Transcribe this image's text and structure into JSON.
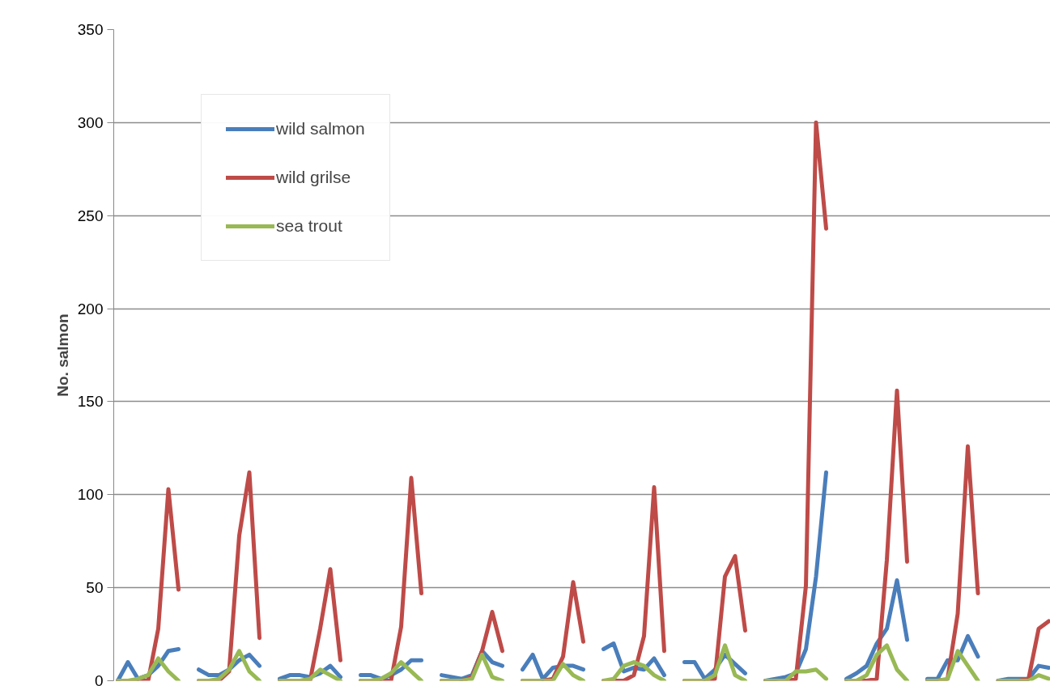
{
  "chart_data": {
    "type": "line",
    "ylabel": "No. salmon",
    "categories": [
      null,
      null,
      null,
      null,
      null,
      null,
      null,
      null,
      null,
      null,
      null,
      null,
      null,
      null,
      null,
      null,
      null,
      null,
      null,
      null,
      null,
      null,
      null,
      null,
      null,
      null,
      null,
      null,
      null,
      null,
      null,
      null,
      null,
      null,
      null,
      null,
      null,
      null,
      null,
      null,
      null,
      null,
      null,
      null,
      null,
      null,
      null,
      null,
      null,
      null,
      null,
      null,
      null,
      null,
      null,
      null,
      null,
      null,
      null,
      null,
      null,
      null,
      null,
      null,
      null,
      null,
      null,
      null,
      null,
      null,
      null,
      null,
      null,
      null,
      null,
      null,
      null,
      null,
      null,
      null,
      null,
      null,
      null,
      null,
      null,
      null,
      null,
      null,
      null,
      null,
      null,
      null,
      null
    ],
    "series": [
      {
        "name": "wild salmon",
        "color": "#4a7ebb",
        "values": [
          0,
          10,
          1,
          3,
          8,
          16,
          17,
          null,
          6,
          3,
          3,
          6,
          11,
          14,
          8,
          null,
          1,
          3,
          3,
          2,
          4,
          8,
          2,
          null,
          3,
          3,
          1,
          3,
          6,
          11,
          11,
          null,
          3,
          2,
          1,
          3,
          16,
          10,
          8,
          null,
          6,
          14,
          1,
          7,
          8,
          8,
          6,
          null,
          17,
          20,
          5,
          7,
          6,
          12,
          3,
          null,
          10,
          10,
          1,
          6,
          14,
          9,
          4,
          null,
          0,
          1,
          2,
          4,
          17,
          56,
          112,
          null,
          1,
          4,
          8,
          20,
          28,
          54,
          22,
          null,
          1,
          1,
          11,
          11,
          24,
          13,
          null,
          0,
          1,
          1,
          1,
          8,
          7
        ]
      },
      {
        "name": "wild grilse",
        "color": "#be4b48",
        "values": [
          0,
          0,
          0,
          0,
          28,
          103,
          49,
          null,
          0,
          0,
          0,
          5,
          78,
          112,
          23,
          null,
          0,
          0,
          0,
          0,
          28,
          60,
          11,
          null,
          0,
          0,
          0,
          0,
          29,
          109,
          47,
          null,
          0,
          0,
          0,
          2,
          16,
          37,
          16,
          null,
          0,
          0,
          0,
          1,
          13,
          53,
          21,
          null,
          0,
          0,
          0,
          3,
          24,
          104,
          16,
          null,
          0,
          0,
          0,
          1,
          56,
          67,
          27,
          null,
          0,
          0,
          0,
          1,
          51,
          300,
          243,
          null,
          0,
          0,
          0,
          1,
          65,
          156,
          64,
          null,
          0,
          0,
          1,
          36,
          126,
          47,
          null,
          0,
          0,
          0,
          1,
          28,
          32
        ]
      },
      {
        "name": "sea trout",
        "color": "#98b954",
        "values": [
          0,
          0,
          1,
          3,
          12,
          5,
          0,
          null,
          0,
          0,
          1,
          6,
          16,
          5,
          0,
          null,
          0,
          0,
          0,
          1,
          6,
          3,
          0,
          null,
          0,
          0,
          1,
          4,
          10,
          5,
          0,
          null,
          0,
          0,
          0,
          1,
          14,
          2,
          0,
          null,
          0,
          0,
          0,
          0,
          9,
          3,
          0,
          null,
          0,
          1,
          8,
          10,
          8,
          3,
          0,
          null,
          0,
          0,
          0,
          3,
          19,
          3,
          0,
          null,
          0,
          0,
          0,
          5,
          5,
          6,
          1,
          null,
          0,
          0,
          3,
          14,
          19,
          6,
          0,
          null,
          0,
          0,
          1,
          16,
          8,
          0,
          null,
          0,
          0,
          0,
          0,
          3,
          1
        ]
      }
    ],
    "ylim": [
      0,
      350
    ],
    "yticks": [
      0,
      50,
      100,
      150,
      200,
      250,
      300,
      350
    ],
    "grid": "y",
    "legend": "top left",
    "tick_labels": "y",
    "marker": "none",
    "line_style": "solid"
  }
}
